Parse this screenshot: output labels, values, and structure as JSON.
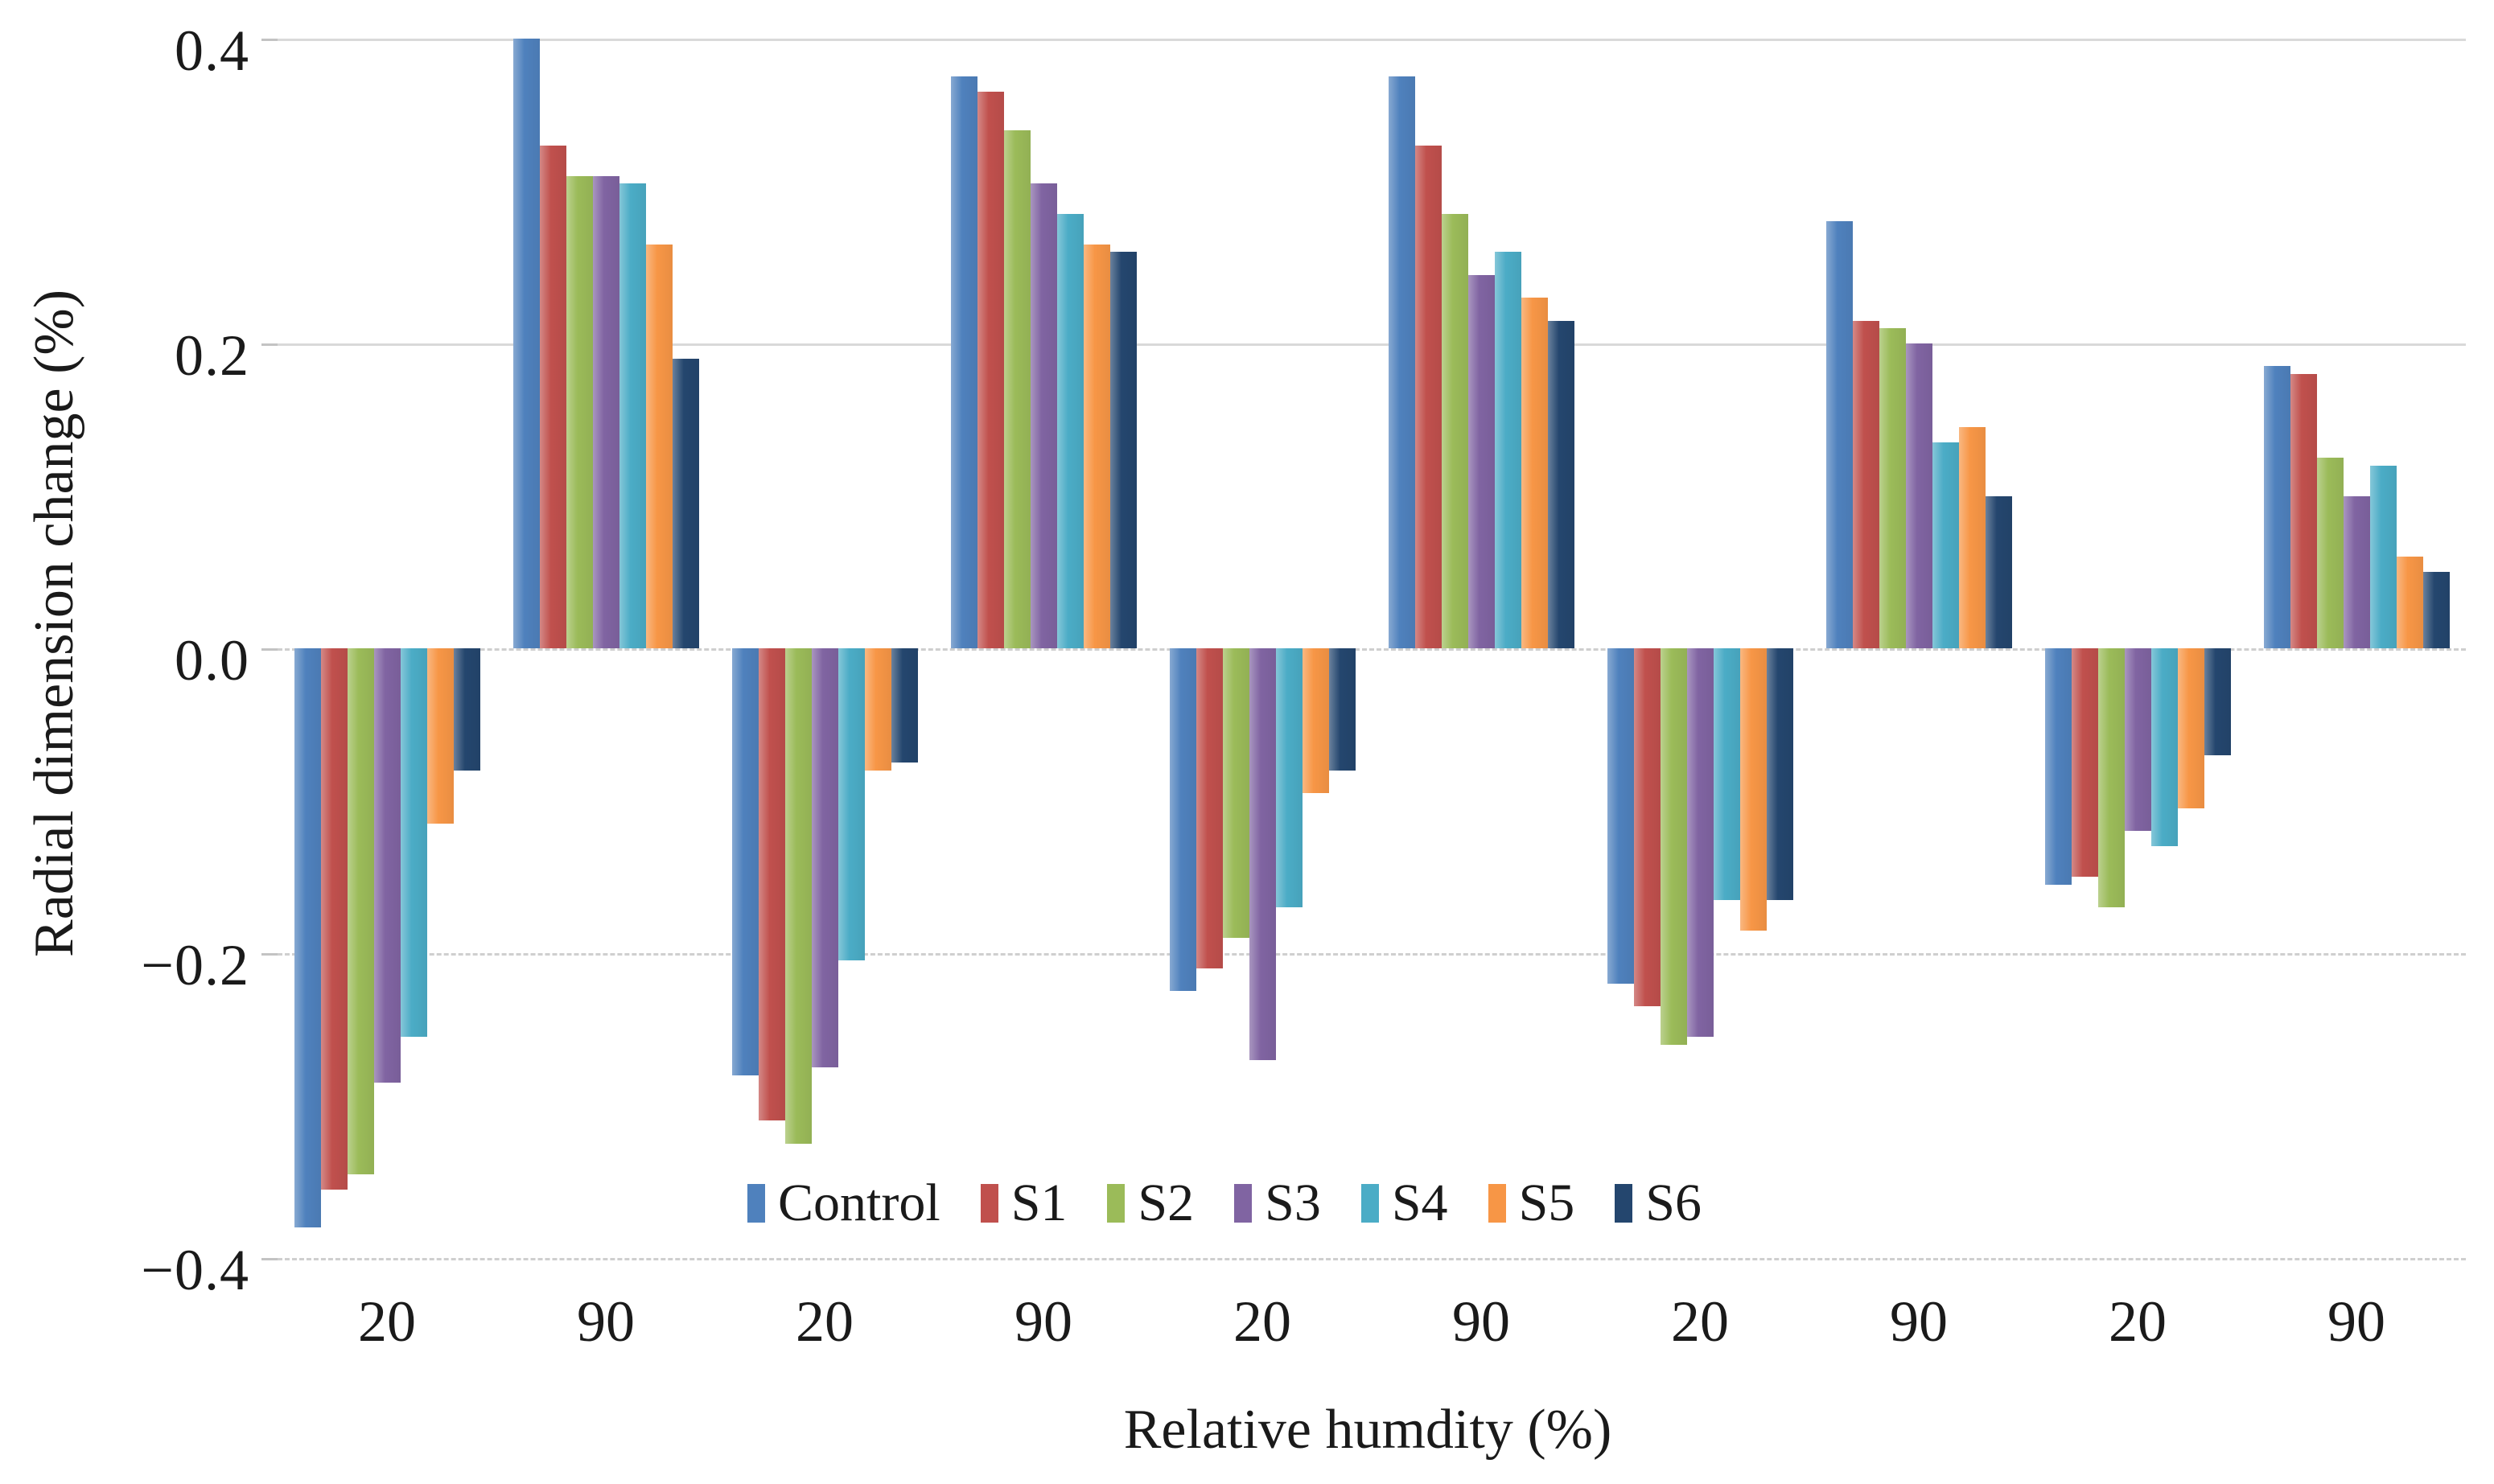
{
  "chart_data": {
    "type": "bar",
    "title": "",
    "xlabel": "Relative humdity (%)",
    "ylabel": "Radial dimension change (%)",
    "categories": [
      "20",
      "90",
      "20",
      "90",
      "20",
      "90",
      "20",
      "90",
      "20",
      "90"
    ],
    "y_tick_labels": [
      "0.4",
      "0.2",
      "0.0",
      "−0.2",
      "−0.4"
    ],
    "y_tick_values": [
      0.4,
      0.2,
      0.0,
      -0.2,
      -0.4
    ],
    "ylim": [
      -0.4,
      0.4
    ],
    "grid": "horizontal",
    "legend_position": "bottom-center-inside",
    "series": [
      {
        "name": "Control",
        "color": "#4F81BD",
        "values": [
          -0.38,
          0.4,
          -0.28,
          0.375,
          -0.225,
          0.375,
          -0.22,
          0.28,
          -0.155,
          0.185
        ]
      },
      {
        "name": "S1",
        "color": "#C0504D",
        "values": [
          -0.355,
          0.33,
          -0.31,
          0.365,
          -0.21,
          0.33,
          -0.235,
          0.215,
          -0.15,
          0.18
        ]
      },
      {
        "name": "S2",
        "color": "#9BBB59",
        "values": [
          -0.345,
          0.31,
          -0.325,
          0.34,
          -0.19,
          0.285,
          -0.26,
          0.21,
          -0.17,
          0.125
        ]
      },
      {
        "name": "S3",
        "color": "#8064A2",
        "values": [
          -0.285,
          0.31,
          -0.275,
          0.305,
          -0.27,
          0.245,
          -0.255,
          0.2,
          -0.12,
          0.1
        ]
      },
      {
        "name": "S4",
        "color": "#4BACC6",
        "values": [
          -0.255,
          0.305,
          -0.205,
          0.285,
          -0.17,
          0.26,
          -0.165,
          0.135,
          -0.13,
          0.12
        ]
      },
      {
        "name": "S5",
        "color": "#F79646",
        "values": [
          -0.115,
          0.265,
          -0.08,
          0.265,
          -0.095,
          0.23,
          -0.185,
          0.145,
          -0.105,
          0.06
        ]
      },
      {
        "name": "S6",
        "color": "#24466E",
        "values": [
          -0.08,
          0.19,
          -0.075,
          0.26,
          -0.08,
          0.215,
          -0.165,
          0.1,
          -0.07,
          0.05
        ]
      }
    ]
  }
}
